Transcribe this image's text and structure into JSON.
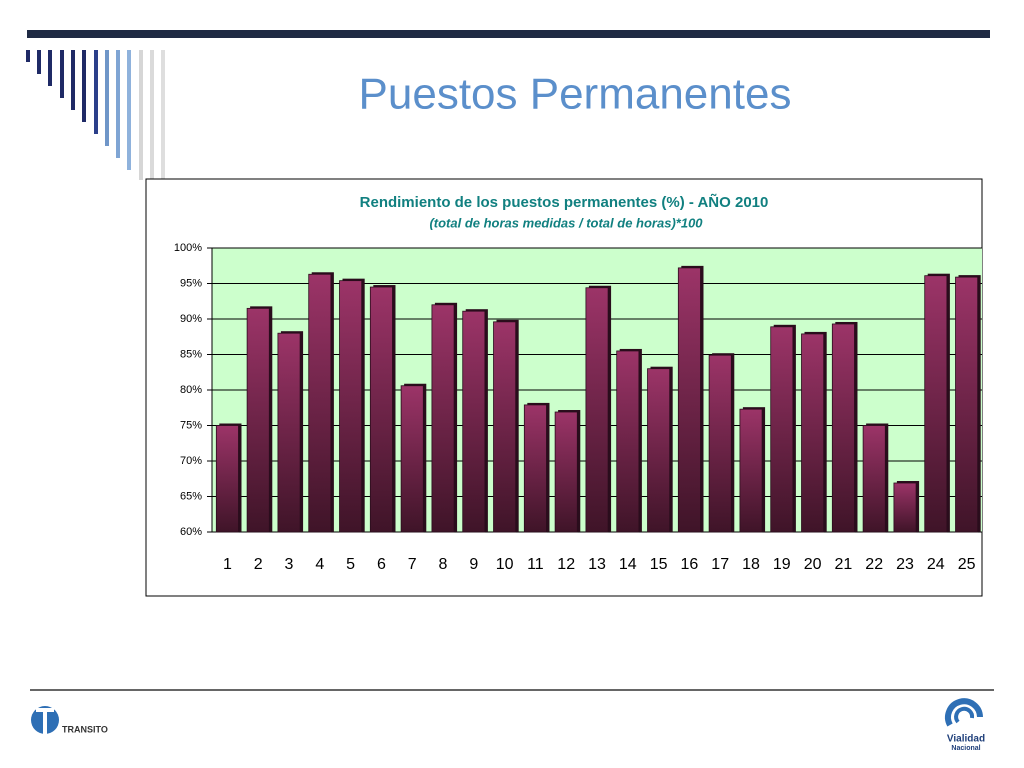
{
  "slide_title": "Puestos Permanentes",
  "logos": {
    "left": "TRANSITO",
    "right_line1": "Vialidad",
    "right_line2": "Nacional"
  },
  "chart_data": {
    "type": "bar",
    "title": "Rendimiento de los puestos permanentes (%) - AÑO 2010",
    "subtitle": "(total de horas medidas / total de horas)*100",
    "categories": [
      "1",
      "2",
      "3",
      "4",
      "5",
      "6",
      "7",
      "8",
      "9",
      "10",
      "11",
      "12",
      "13",
      "14",
      "15",
      "16",
      "17",
      "18",
      "19",
      "20",
      "21",
      "22",
      "23",
      "24",
      "25"
    ],
    "values": [
      75,
      91.5,
      88,
      96.3,
      95.4,
      94.5,
      80.6,
      92,
      91.1,
      89.6,
      77.9,
      76.9,
      94.4,
      85.5,
      83,
      97.2,
      84.9,
      77.3,
      88.9,
      87.9,
      89.3,
      75,
      66.9,
      96.1,
      95.9
    ],
    "color": "#993366",
    "plot_background": "#ccffcc",
    "ylim": [
      60,
      100
    ],
    "yticks": [
      {
        "value": 60,
        "label": "60%"
      },
      {
        "value": 65,
        "label": "65%"
      },
      {
        "value": 70,
        "label": "70%"
      },
      {
        "value": 75,
        "label": "75%"
      },
      {
        "value": 80,
        "label": "80%"
      },
      {
        "value": 85,
        "label": "85%"
      },
      {
        "value": 90,
        "label": "90%"
      },
      {
        "value": 95,
        "label": "95%"
      },
      {
        "value": 100,
        "label": "100%"
      }
    ],
    "grid": true
  }
}
